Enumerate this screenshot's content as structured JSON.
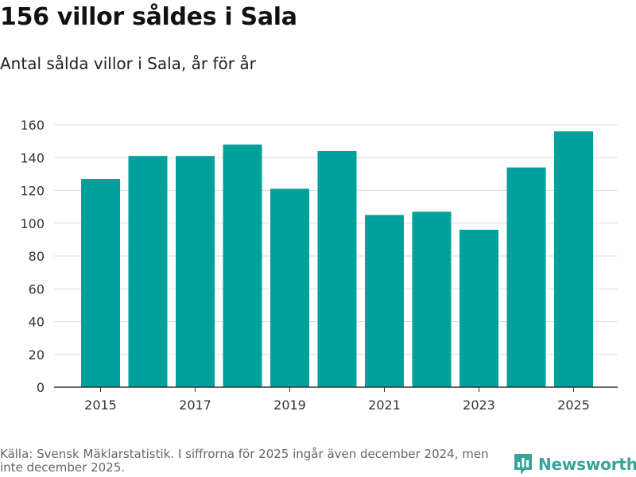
{
  "title": "156 villor såldes i Sala",
  "subtitle": "Antal sålda villor i Sala, år för år",
  "source": "Källa: Svensk Mäklarstatistik. I siffrorna för 2025 ingår även december 2024, men inte december 2025.",
  "brand": "Newsworthy",
  "colors": {
    "bar": "#00a19a",
    "grid": "#dddddd",
    "axis": "#333333",
    "brand": "#3aa39a"
  },
  "chart_data": {
    "type": "bar",
    "title": "156 villor såldes i Sala",
    "subtitle": "Antal sålda villor i Sala, år för år",
    "xlabel": "",
    "ylabel": "",
    "categories": [
      2015,
      2016,
      2017,
      2018,
      2019,
      2020,
      2021,
      2022,
      2023,
      2024,
      2025
    ],
    "values": [
      127,
      141,
      141,
      148,
      121,
      144,
      105,
      107,
      96,
      134,
      156
    ],
    "x_tick_labels": [
      "2015",
      "2017",
      "2019",
      "2021",
      "2023",
      "2025"
    ],
    "y_ticks": [
      0,
      20,
      40,
      60,
      80,
      100,
      120,
      140,
      160
    ],
    "ylim": [
      0,
      160
    ],
    "grid": true,
    "legend": "none"
  }
}
